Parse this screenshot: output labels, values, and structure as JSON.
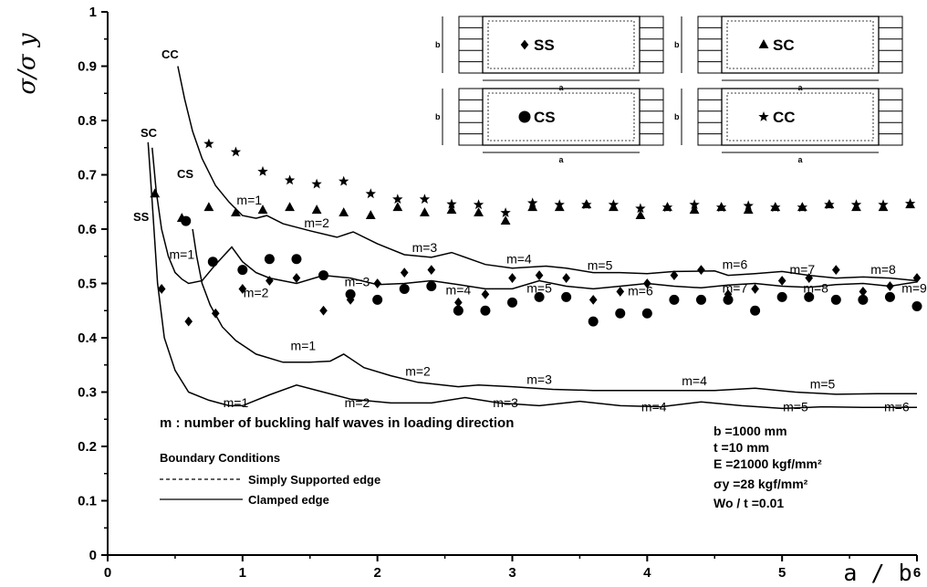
{
  "chart_data": {
    "type": "line",
    "title": "",
    "xlabel": "a / b",
    "ylabel": "σ/σ y",
    "xlim": [
      0,
      6
    ],
    "ylim": [
      0,
      1
    ],
    "xticks": [
      "0",
      "1",
      "2",
      "3",
      "4",
      "5",
      "6"
    ],
    "yticks": [
      "0",
      "0.1",
      "0.2",
      "0.3",
      "0.4",
      "0.5",
      "0.6",
      "0.7",
      "0.8",
      "0.9",
      "1"
    ],
    "grid": false,
    "curve_labels": [
      "CC",
      "SC",
      "CS",
      "SS"
    ],
    "series": [
      {
        "name": "CC",
        "line": "solid",
        "x": [
          0.52,
          0.57,
          0.63,
          0.7,
          0.8,
          0.9,
          1.0,
          1.1,
          1.18,
          1.3,
          1.5,
          1.7,
          1.82,
          2.0,
          2.2,
          2.4,
          2.55,
          2.8,
          3.0,
          3.25,
          3.4,
          3.6,
          3.8,
          4.0,
          4.2,
          4.5,
          4.6,
          4.8,
          5.0,
          5.2,
          5.4,
          5.6,
          5.8,
          6.0
        ],
        "y": [
          0.9,
          0.84,
          0.78,
          0.73,
          0.68,
          0.65,
          0.625,
          0.62,
          0.625,
          0.61,
          0.597,
          0.585,
          0.595,
          0.573,
          0.553,
          0.548,
          0.557,
          0.535,
          0.528,
          0.532,
          0.528,
          0.52,
          0.52,
          0.518,
          0.522,
          0.523,
          0.515,
          0.518,
          0.522,
          0.515,
          0.51,
          0.512,
          0.51,
          0.505
        ]
      },
      {
        "name": "SC",
        "line": "solid",
        "x": [
          0.33,
          0.36,
          0.4,
          0.45,
          0.5,
          0.55,
          0.6,
          0.7,
          0.8,
          0.92,
          1.0,
          1.1,
          1.2,
          1.4,
          1.6,
          1.8,
          2.0,
          2.2,
          2.4,
          2.6,
          2.8,
          3.0,
          3.2,
          3.4,
          3.6,
          3.8,
          4.0,
          4.2,
          4.4,
          4.6,
          4.8,
          5.0,
          5.2,
          5.4,
          5.6,
          5.8,
          6.0
        ],
        "y": [
          0.75,
          0.67,
          0.6,
          0.55,
          0.52,
          0.508,
          0.5,
          0.505,
          0.535,
          0.567,
          0.54,
          0.52,
          0.51,
          0.5,
          0.515,
          0.51,
          0.498,
          0.5,
          0.505,
          0.498,
          0.49,
          0.49,
          0.505,
          0.495,
          0.49,
          0.495,
          0.5,
          0.495,
          0.492,
          0.497,
          0.5,
          0.495,
          0.493,
          0.498,
          0.5,
          0.495,
          0.503
        ]
      },
      {
        "name": "CS",
        "line": "solid",
        "x": [
          0.63,
          0.66,
          0.7,
          0.76,
          0.85,
          0.95,
          1.1,
          1.3,
          1.5,
          1.65,
          1.75,
          1.9,
          2.1,
          2.3,
          2.6,
          2.75,
          3.0,
          3.3,
          3.6,
          3.9,
          4.2,
          4.5,
          4.8,
          5.1,
          5.4,
          5.7,
          6.0
        ],
        "y": [
          0.6,
          0.55,
          0.5,
          0.46,
          0.42,
          0.395,
          0.37,
          0.355,
          0.355,
          0.357,
          0.37,
          0.345,
          0.33,
          0.318,
          0.31,
          0.313,
          0.31,
          0.305,
          0.303,
          0.303,
          0.303,
          0.303,
          0.307,
          0.3,
          0.296,
          0.297,
          0.297
        ]
      },
      {
        "name": "SS",
        "line": "solid",
        "x": [
          0.3,
          0.33,
          0.37,
          0.42,
          0.5,
          0.6,
          0.75,
          0.9,
          1.0,
          1.2,
          1.4,
          1.6,
          1.8,
          2.1,
          2.4,
          2.65,
          2.9,
          3.2,
          3.5,
          3.8,
          4.1,
          4.4,
          4.7,
          5.0,
          5.3,
          5.6,
          6.0
        ],
        "y": [
          0.76,
          0.65,
          0.5,
          0.4,
          0.34,
          0.3,
          0.285,
          0.275,
          0.275,
          0.295,
          0.313,
          0.3,
          0.287,
          0.28,
          0.28,
          0.29,
          0.28,
          0.275,
          0.283,
          0.275,
          0.273,
          0.282,
          0.275,
          0.27,
          0.273,
          0.272,
          0.272
        ]
      },
      {
        "name": "SS",
        "type": "scatter",
        "marker": "diamond",
        "x": [
          0.4,
          0.6,
          0.8,
          1.0,
          1.2,
          1.4,
          1.6,
          1.8,
          2.0,
          2.2,
          2.4,
          2.6,
          2.8,
          3.0,
          3.2,
          3.4,
          3.6,
          3.8,
          4.0,
          4.2,
          4.4,
          4.6,
          4.8,
          5.0,
          5.2,
          5.4,
          5.6,
          5.8,
          6.0
        ],
        "y": [
          0.49,
          0.43,
          0.445,
          0.49,
          0.505,
          0.51,
          0.45,
          0.47,
          0.5,
          0.52,
          0.525,
          0.465,
          0.48,
          0.51,
          0.515,
          0.51,
          0.47,
          0.485,
          0.5,
          0.515,
          0.525,
          0.48,
          0.49,
          0.505,
          0.51,
          0.525,
          0.485,
          0.495,
          0.51
        ]
      },
      {
        "name": "SC",
        "type": "scatter",
        "marker": "triangle",
        "x": [
          0.35,
          0.55,
          0.75,
          0.95,
          1.15,
          1.35,
          1.55,
          1.75,
          1.95,
          2.15,
          2.35,
          2.55,
          2.75,
          2.95,
          3.15,
          3.35,
          3.55,
          3.75,
          3.95,
          4.15,
          4.35,
          4.55,
          4.75,
          4.95,
          5.15,
          5.35,
          5.55,
          5.75,
          5.95
        ],
        "y": [
          0.665,
          0.62,
          0.64,
          0.63,
          0.635,
          0.64,
          0.635,
          0.63,
          0.625,
          0.64,
          0.63,
          0.635,
          0.63,
          0.615,
          0.64,
          0.64,
          0.645,
          0.64,
          0.625,
          0.64,
          0.635,
          0.64,
          0.635,
          0.64,
          0.64,
          0.645,
          0.64,
          0.64,
          0.645
        ]
      },
      {
        "name": "CS",
        "type": "scatter",
        "marker": "circle",
        "x": [
          0.58,
          0.78,
          1.0,
          1.2,
          1.4,
          1.6,
          1.8,
          2.0,
          2.2,
          2.4,
          2.6,
          2.8,
          3.0,
          3.2,
          3.4,
          3.6,
          3.8,
          4.0,
          4.2,
          4.4,
          4.6,
          4.8,
          5.0,
          5.2,
          5.4,
          5.6,
          5.8,
          6.0
        ],
        "y": [
          0.615,
          0.54,
          0.525,
          0.545,
          0.545,
          0.515,
          0.48,
          0.47,
          0.49,
          0.495,
          0.45,
          0.45,
          0.465,
          0.475,
          0.475,
          0.43,
          0.445,
          0.445,
          0.47,
          0.47,
          0.47,
          0.45,
          0.475,
          0.475,
          0.47,
          0.47,
          0.475,
          0.458
        ]
      },
      {
        "name": "CC",
        "type": "scatter",
        "marker": "star",
        "x": [
          0.75,
          0.95,
          1.15,
          1.35,
          1.55,
          1.75,
          1.95,
          2.15,
          2.35,
          2.55,
          2.75,
          2.95,
          3.15,
          3.35,
          3.55,
          3.75,
          3.95,
          4.15,
          4.35,
          4.55,
          4.75,
          4.95,
          5.15,
          5.35,
          5.55,
          5.75,
          5.95
        ],
        "y": [
          0.757,
          0.742,
          0.706,
          0.69,
          0.683,
          0.688,
          0.665,
          0.655,
          0.655,
          0.646,
          0.645,
          0.63,
          0.648,
          0.645,
          0.645,
          0.645,
          0.638,
          0.64,
          0.645,
          0.64,
          0.643,
          0.64,
          0.64,
          0.645,
          0.645,
          0.645,
          0.647
        ]
      }
    ],
    "mode_labels": [
      {
        "text": "m=1",
        "x": 1.05,
        "y": 0.645
      },
      {
        "text": "m=2",
        "x": 1.55,
        "y": 0.603
      },
      {
        "text": "m=3",
        "x": 2.35,
        "y": 0.558
      },
      {
        "text": "m=4",
        "x": 3.05,
        "y": 0.537
      },
      {
        "text": "m=5",
        "x": 3.65,
        "y": 0.525
      },
      {
        "text": "m=6",
        "x": 4.65,
        "y": 0.527
      },
      {
        "text": "m=7",
        "x": 5.15,
        "y": 0.518
      },
      {
        "text": "m=8",
        "x": 5.75,
        "y": 0.518
      },
      {
        "text": "m=1",
        "x": 0.55,
        "y": 0.545
      },
      {
        "text": "m=2",
        "x": 1.1,
        "y": 0.475
      },
      {
        "text": "m=3",
        "x": 1.85,
        "y": 0.495
      },
      {
        "text": "m=4",
        "x": 2.6,
        "y": 0.48
      },
      {
        "text": "m=5",
        "x": 3.2,
        "y": 0.483
      },
      {
        "text": "m=6",
        "x": 3.95,
        "y": 0.478
      },
      {
        "text": "m=7",
        "x": 4.65,
        "y": 0.483
      },
      {
        "text": "m=8",
        "x": 5.25,
        "y": 0.483
      },
      {
        "text": "m=9",
        "x": 5.98,
        "y": 0.483
      },
      {
        "text": "m=1",
        "x": 1.45,
        "y": 0.377
      },
      {
        "text": "m=2",
        "x": 2.3,
        "y": 0.33
      },
      {
        "text": "m=3",
        "x": 3.2,
        "y": 0.315
      },
      {
        "text": "m=4",
        "x": 4.35,
        "y": 0.313
      },
      {
        "text": "m=5",
        "x": 5.3,
        "y": 0.307
      },
      {
        "text": "m=1",
        "x": 0.95,
        "y": 0.272
      },
      {
        "text": "m=2",
        "x": 1.85,
        "y": 0.272
      },
      {
        "text": "m=3",
        "x": 2.95,
        "y": 0.272
      },
      {
        "text": "m=4",
        "x": 4.05,
        "y": 0.265
      },
      {
        "text": "m=5",
        "x": 5.1,
        "y": 0.265
      },
      {
        "text": "m=6",
        "x": 5.85,
        "y": 0.265
      }
    ],
    "annotations": {
      "mode_note": "m : number of buckling half waves in loading direction",
      "bc_title": "Boundary Conditions",
      "bc_simply": "Simply Supported edge",
      "bc_clamped": "Clamped edge",
      "params": [
        "b =1000 mm",
        "t =10 mm",
        "E =21000 kgf/mm²",
        "σy =28 kgf/mm²",
        "Wo / t =0.01"
      ]
    },
    "insets": [
      {
        "label": "SS",
        "marker": "diamond"
      },
      {
        "label": "SC",
        "marker": "triangle"
      },
      {
        "label": "CS",
        "marker": "circle"
      },
      {
        "label": "CC",
        "marker": "star"
      }
    ],
    "inset_dims": {
      "a": "a",
      "b": "b"
    }
  }
}
